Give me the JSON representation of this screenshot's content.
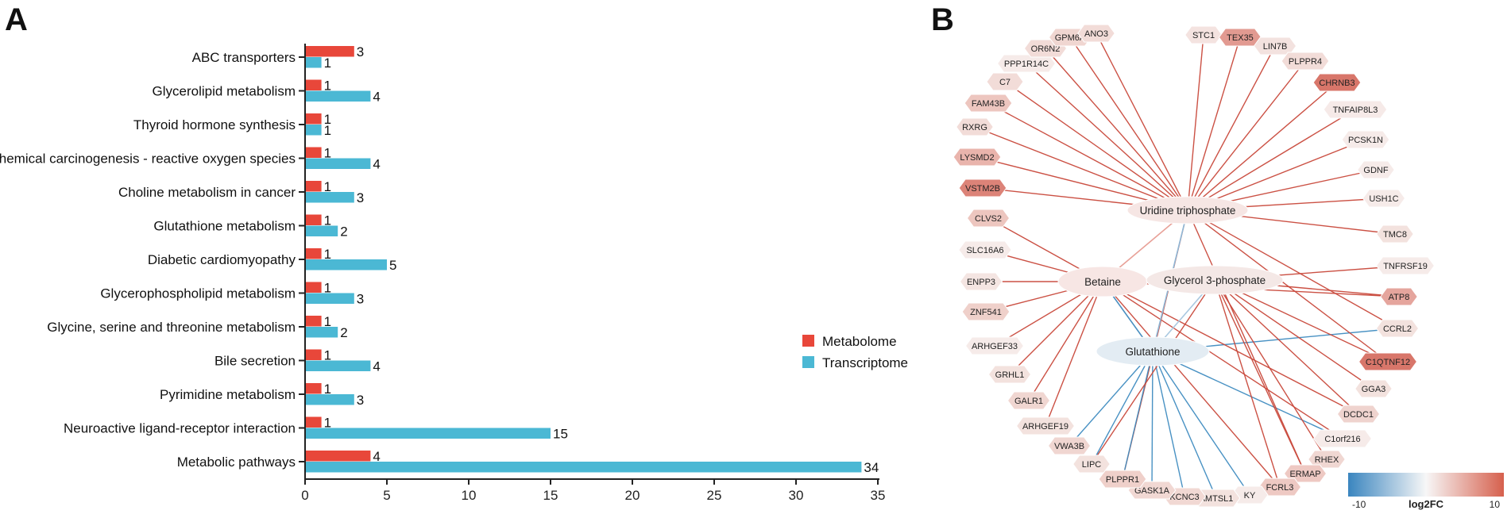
{
  "chart_data": [
    {
      "type": "bar",
      "panel_label": "A",
      "orientation": "horizontal",
      "categories": [
        "ABC transporters",
        "Glycerolipid metabolism",
        "Thyroid hormone synthesis",
        "Chemical carcinogenesis - reactive oxygen species",
        "Choline metabolism in cancer",
        "Glutathione metabolism",
        "Diabetic cardiomyopathy",
        "Glycerophospholipid metabolism",
        "Glycine, serine and threonine metabolism",
        "Bile secretion",
        "Pyrimidine metabolism",
        "Neuroactive ligand-receptor interaction",
        "Metabolic pathways"
      ],
      "series": [
        {
          "name": "Metabolome",
          "color": "#e8473a",
          "values": [
            3,
            1,
            1,
            1,
            1,
            1,
            1,
            1,
            1,
            1,
            1,
            1,
            4
          ]
        },
        {
          "name": "Transcriptome",
          "color": "#4bb8d4",
          "values": [
            1,
            4,
            1,
            4,
            3,
            2,
            5,
            3,
            2,
            4,
            3,
            15,
            34
          ]
        }
      ],
      "xlim": [
        0,
        35
      ],
      "xticks": [
        0,
        5,
        10,
        15,
        20,
        25,
        30,
        35
      ],
      "legend_position": "right"
    },
    {
      "type": "network",
      "panel_label": "B",
      "hubs": [
        {
          "name": "Uridine triphosphate",
          "color": "#f6e6e4"
        },
        {
          "name": "Betaine",
          "color": "#f7e6e4"
        },
        {
          "name": "Glycerol 3-phosphate",
          "color": "#f4e8e6"
        },
        {
          "name": "Glutathione",
          "color": "#e3ecf3"
        }
      ],
      "nodes": [
        {
          "name": "STC1",
          "color": "#f4e3e0"
        },
        {
          "name": "TEX35",
          "color": "#e29a91"
        },
        {
          "name": "LIN7B",
          "color": "#f3e2df"
        },
        {
          "name": "PLPPR4",
          "color": "#f2dcd8"
        },
        {
          "name": "CHRNB3",
          "color": "#d8766a"
        },
        {
          "name": "TNFAIP8L3",
          "color": "#f6eae8"
        },
        {
          "name": "PCSK1N",
          "color": "#f6ebe9"
        },
        {
          "name": "GDNF",
          "color": "#f6ebe9"
        },
        {
          "name": "USH1C",
          "color": "#f6ebe9"
        },
        {
          "name": "TMC8",
          "color": "#f3e2de"
        },
        {
          "name": "TNFRSF19",
          "color": "#f6ebe9"
        },
        {
          "name": "ATP8",
          "color": "#e5a59d"
        },
        {
          "name": "CCRL2",
          "color": "#f3e2de"
        },
        {
          "name": "C1QTNF12",
          "color": "#d8766a"
        },
        {
          "name": "GGA3",
          "color": "#f3e2de"
        },
        {
          "name": "DCDC1",
          "color": "#efd3ce"
        },
        {
          "name": "C1orf216",
          "color": "#f6ebe9"
        },
        {
          "name": "RHEX",
          "color": "#f0d7d2"
        },
        {
          "name": "ERMAP",
          "color": "#eec9c3"
        },
        {
          "name": "FCRL3",
          "color": "#eec9c3"
        },
        {
          "name": "KY",
          "color": "#f6ebe9"
        },
        {
          "name": "AMTSL1",
          "color": "#f3e2de"
        },
        {
          "name": "KCNC3",
          "color": "#f1d8d3"
        },
        {
          "name": "GASK1A",
          "color": "#f1d8d3"
        },
        {
          "name": "PLPPR1",
          "color": "#efd0ca"
        },
        {
          "name": "LIPC",
          "color": "#f3e2de"
        },
        {
          "name": "VWA3B",
          "color": "#f0d6d1"
        },
        {
          "name": "ARHGEF19",
          "color": "#f3e2de"
        },
        {
          "name": "GALR1",
          "color": "#f0d6d1"
        },
        {
          "name": "GRHL1",
          "color": "#f3e2de"
        },
        {
          "name": "ARHGEF33",
          "color": "#f6ebe9"
        },
        {
          "name": "ZNF541",
          "color": "#efd0ca"
        },
        {
          "name": "ENPP3",
          "color": "#f4e5e2"
        },
        {
          "name": "SLC16A6",
          "color": "#f6ebe9"
        },
        {
          "name": "CLVS2",
          "color": "#edc6bf"
        },
        {
          "name": "VSTM2B",
          "color": "#dc8378"
        },
        {
          "name": "LYSMD2",
          "color": "#e9b4ac"
        },
        {
          "name": "RXRG",
          "color": "#f2dcd8"
        },
        {
          "name": "FAM43B",
          "color": "#edc6bf"
        },
        {
          "name": "C7",
          "color": "#f2dcd8"
        },
        {
          "name": "PPP1R14C",
          "color": "#f6ebe9"
        },
        {
          "name": "OR6N2",
          "color": "#f2dcd8"
        },
        {
          "name": "GPM6A",
          "color": "#f0d6d1"
        },
        {
          "name": "ANO3",
          "color": "#f2dcd8"
        }
      ],
      "edges_note": "edges connect hub metabolites to genes; red = positive correlation, blue = negative correlation",
      "colorbar": {
        "label": "log2FC",
        "min": -10,
        "max": 10,
        "min_label": "-10",
        "max_label": "10",
        "low_color": "#3a85bf",
        "mid_color": "#f7f7f7",
        "high_color": "#d6604d"
      }
    }
  ]
}
